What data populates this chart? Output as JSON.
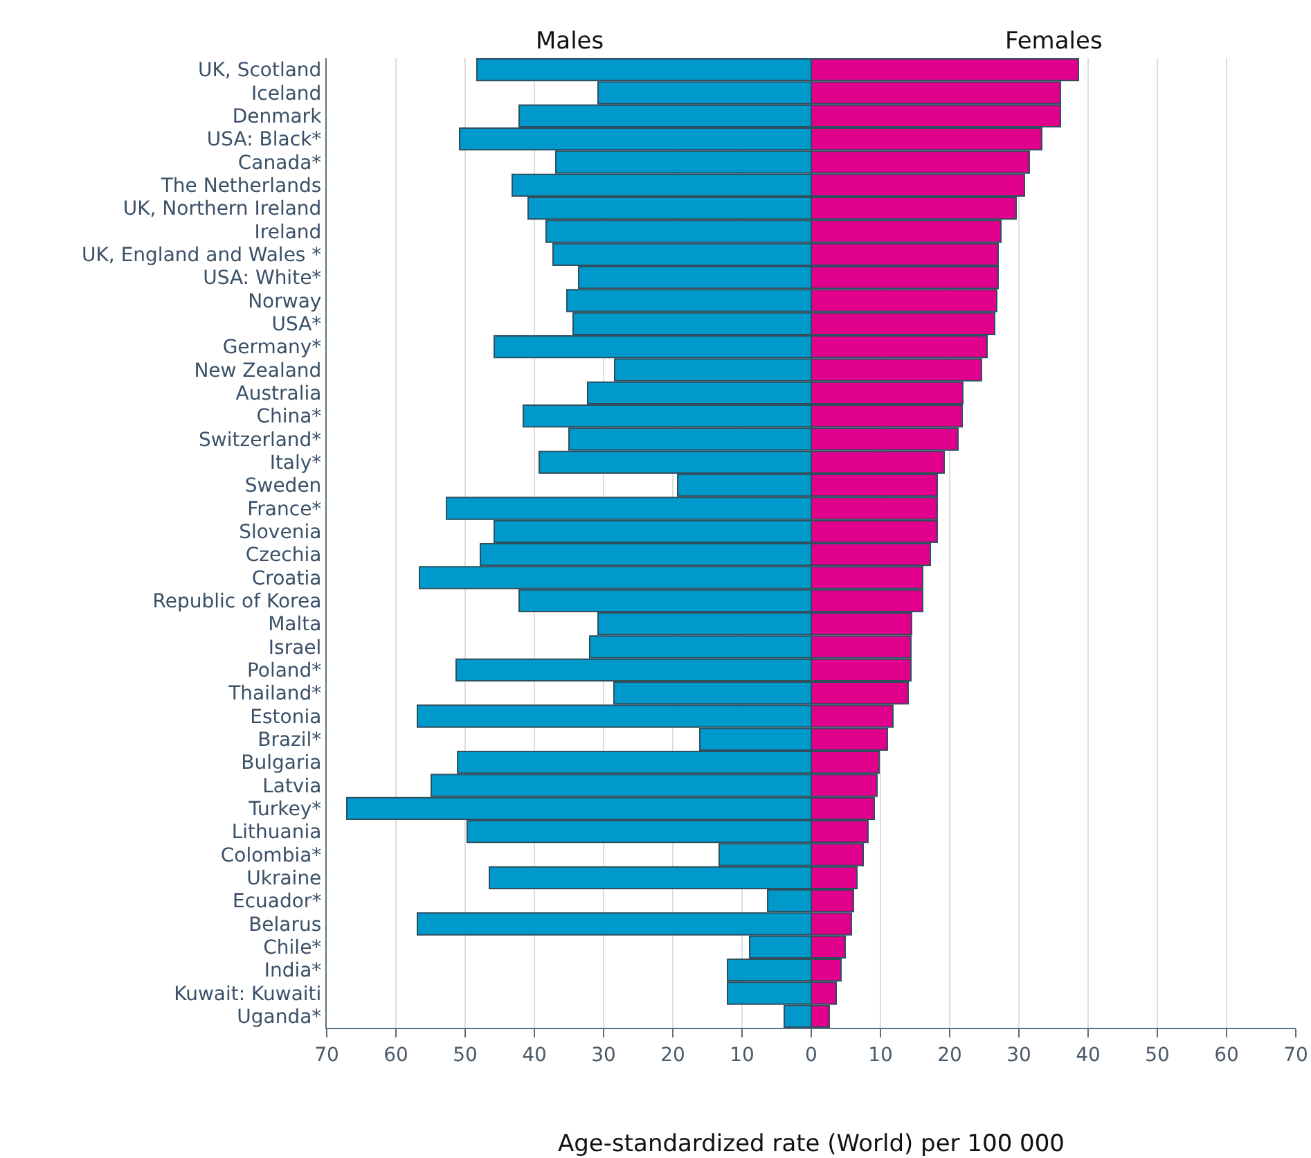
{
  "chart_data": {
    "type": "bar",
    "orientation": "horizontal",
    "xlabel": "Age-standardized rate (World) per 100 000",
    "categories": [
      "UK, Scotland",
      "Iceland",
      "Denmark",
      "USA: Black*",
      "Canada*",
      "The Netherlands",
      "UK, Northern Ireland",
      "Ireland",
      "UK, England and Wales *",
      "USA: White*",
      "Norway",
      "USA*",
      "Germany*",
      "New Zealand",
      "Australia",
      "China*",
      "Switzerland*",
      "Italy*",
      "Sweden",
      "France*",
      "Slovenia",
      "Czechia",
      "Croatia",
      "Republic of Korea",
      "Malta",
      "Israel",
      "Poland*",
      "Thailand*",
      "Estonia",
      "Brazil*",
      "Bulgaria",
      "Latvia",
      "Turkey*",
      "Lithuania",
      "Colombia*",
      "Ukraine",
      "Ecuador*",
      "Belarus",
      "Chile*",
      "India*",
      "Kuwait: Kuwaiti",
      "Uganda*"
    ],
    "series": [
      {
        "name": "Males",
        "color": "#0099cc",
        "values": [
          -48.3,
          -30.8,
          -42.2,
          -50.8,
          -36.9,
          -43.2,
          -40.9,
          -38.3,
          -37.3,
          -33.6,
          -35.3,
          -34.4,
          -45.8,
          -28.4,
          -32.3,
          -41.6,
          -35,
          -39.3,
          -19.3,
          -52.7,
          -45.8,
          -47.8,
          -56.6,
          -42.2,
          -30.8,
          -32,
          -51.3,
          -28.5,
          -56.9,
          -16.1,
          -51.1,
          -54.9,
          -67.1,
          -49.7,
          -13.3,
          -46.5,
          -6.3,
          -56.9,
          -8.9,
          -12.1,
          -12.1,
          -3.9
        ]
      },
      {
        "name": "Females",
        "color": "#e0008c",
        "values": [
          38.6,
          36,
          36,
          33.3,
          31.5,
          30.8,
          29.6,
          27.4,
          27,
          27,
          26.8,
          26.5,
          25.4,
          24.6,
          21.9,
          21.8,
          21.2,
          19.2,
          18.2,
          18.2,
          18.2,
          17.2,
          16.1,
          16.1,
          14.5,
          14.4,
          14.4,
          14,
          11.8,
          11,
          9.8,
          9.5,
          9.1,
          8.2,
          7.5,
          6.6,
          6.1,
          5.8,
          4.9,
          4.3,
          3.6,
          2.6
        ]
      }
    ],
    "xlim": [
      -70,
      70
    ],
    "xticks": [
      {
        "value": -70,
        "label": "70"
      },
      {
        "value": -60,
        "label": "60"
      },
      {
        "value": -50,
        "label": "50"
      },
      {
        "value": -40,
        "label": "40"
      },
      {
        "value": -30,
        "label": "30"
      },
      {
        "value": -20,
        "label": "20"
      },
      {
        "value": -10,
        "label": "10"
      },
      0,
      10,
      20,
      30,
      40,
      50,
      60,
      70
    ],
    "grid": "x",
    "legend": false,
    "stacked": true
  }
}
